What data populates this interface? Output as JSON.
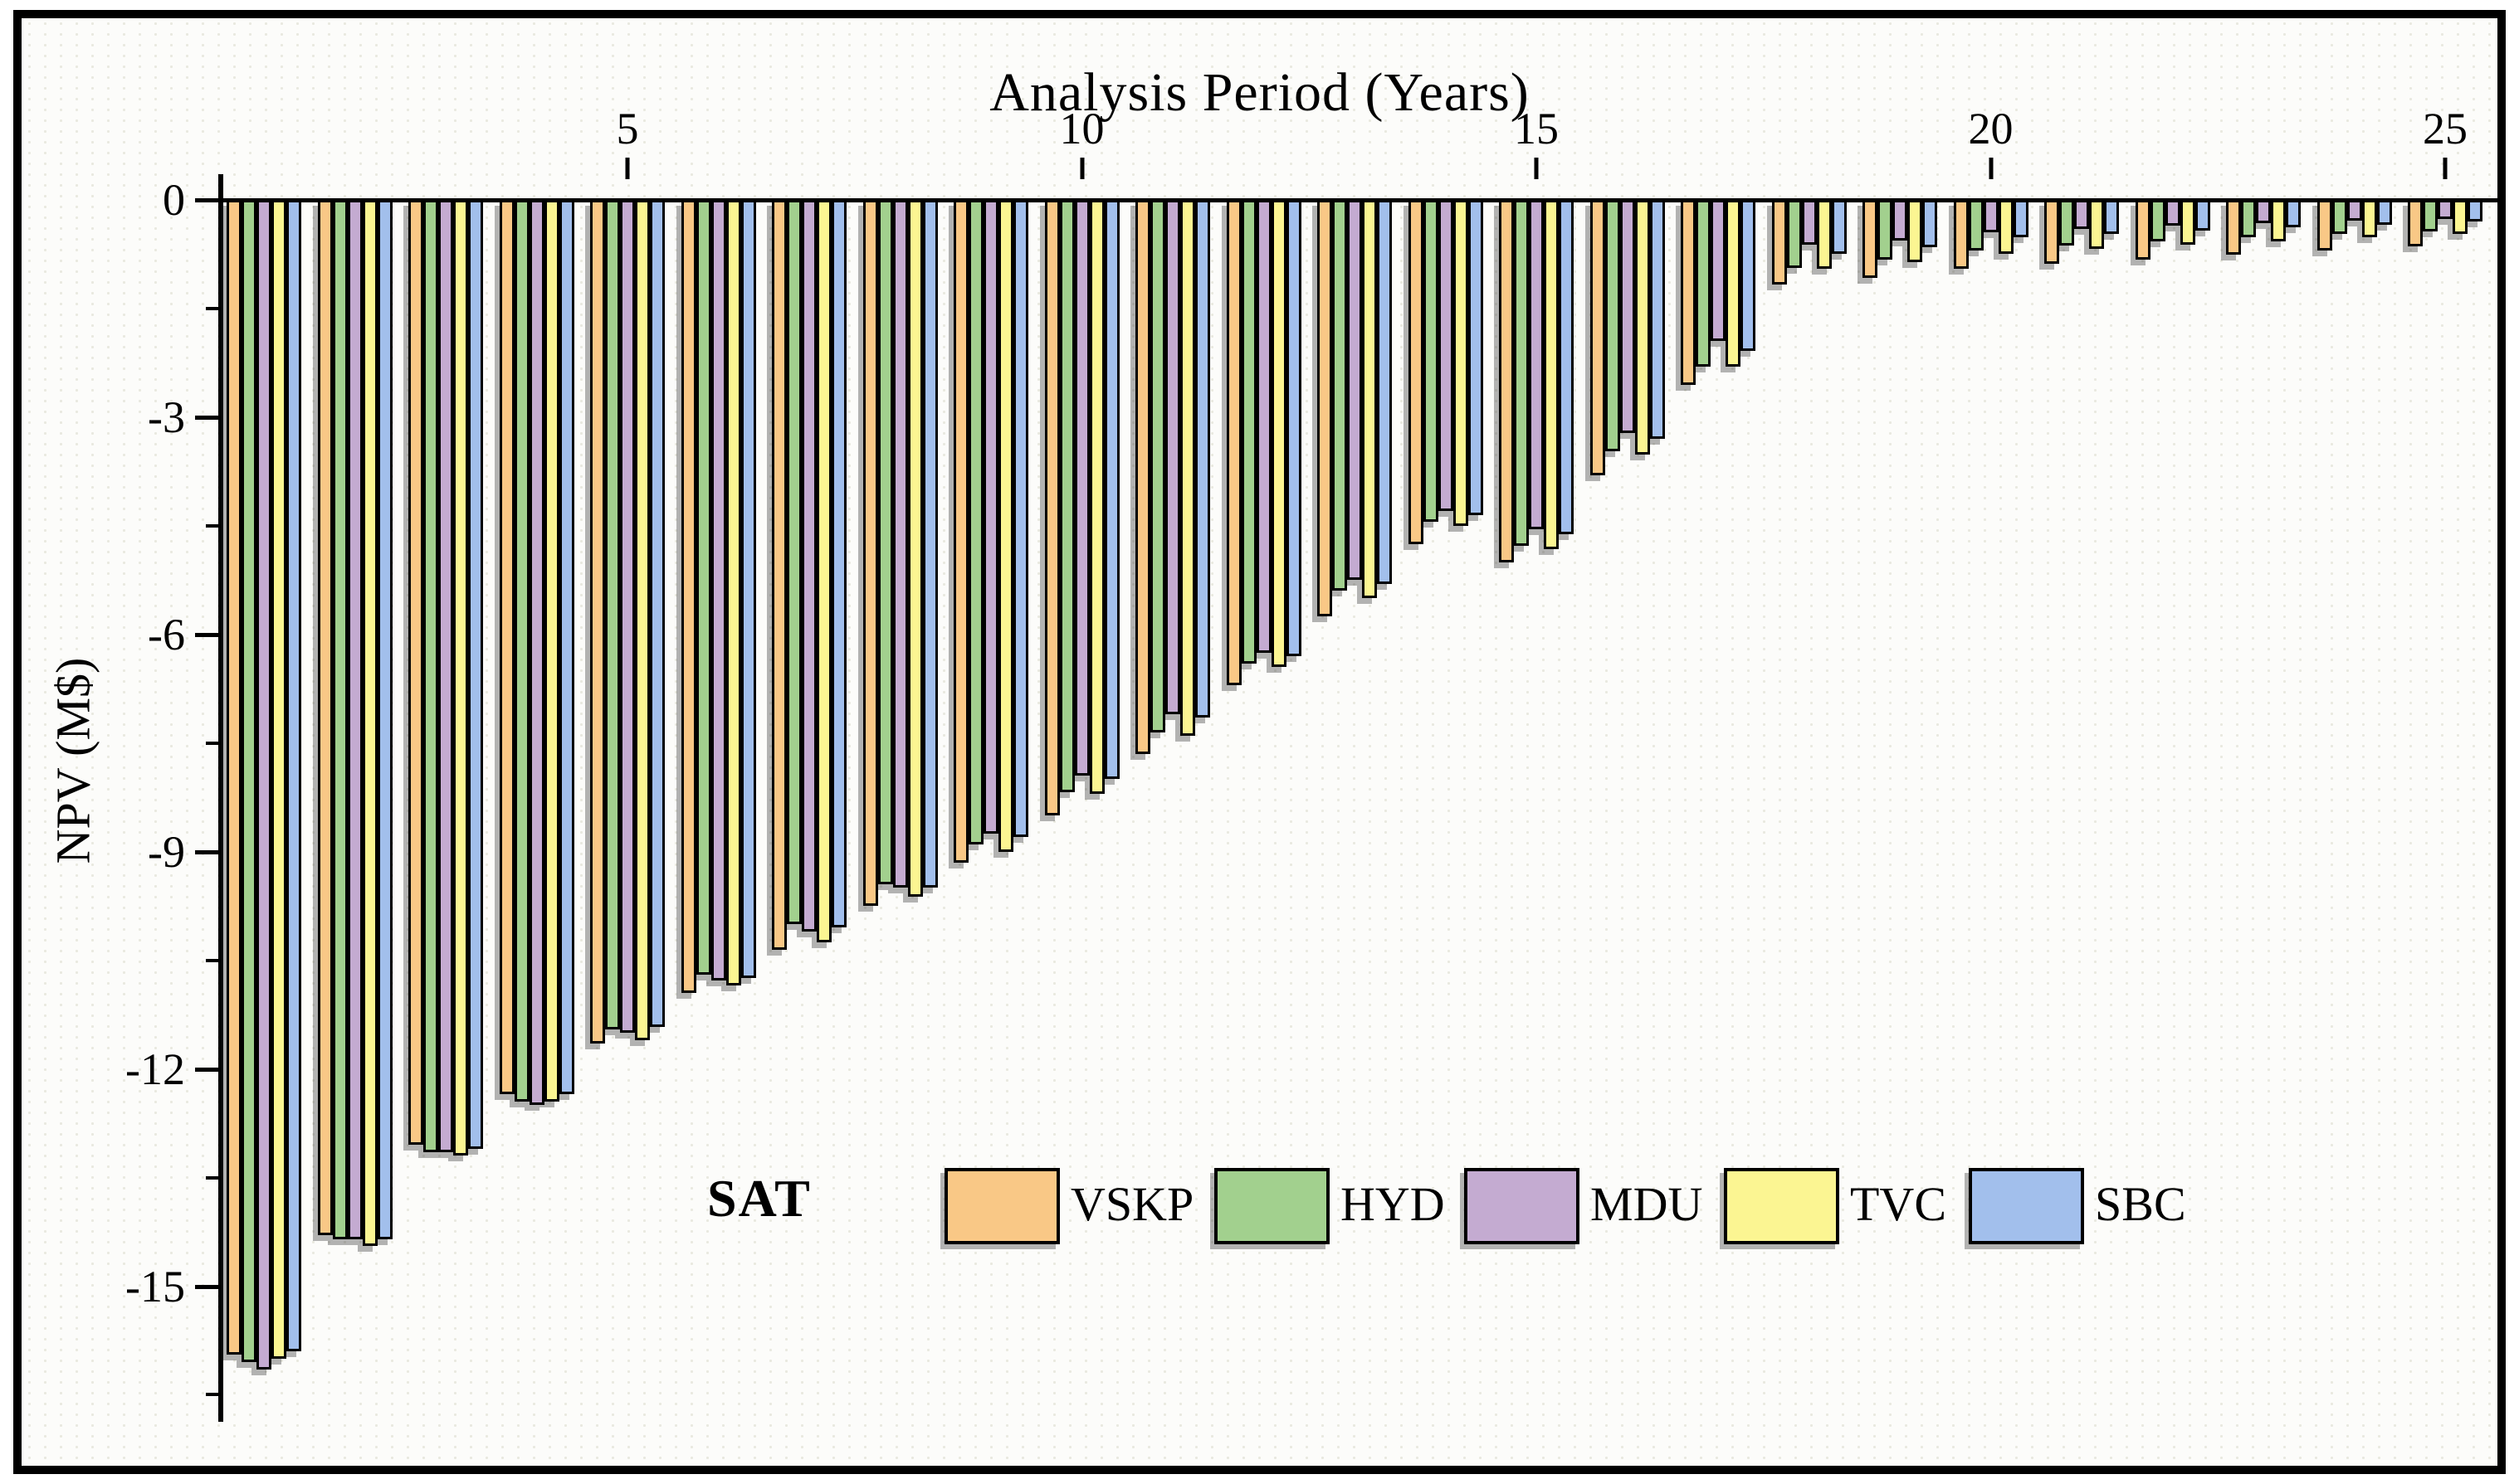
{
  "chart_data": {
    "type": "bar",
    "orientation": "vertical-negative",
    "title": "Analysis Period (Years)",
    "ylabel": "NPV (M$)",
    "legend_title": "SAT",
    "legend_position": "bottom-center",
    "grid": false,
    "background": "#fcfcfa",
    "axis_color": "#000000",
    "x_major_ticks": [
      5,
      10,
      15,
      20,
      25
    ],
    "y_major_ticks": [
      0,
      -3,
      -6,
      -9,
      -12,
      -15
    ],
    "y_minor_ticks": [
      -1.5,
      -4.5,
      -7.5,
      -10.5,
      -13.5,
      -16.5
    ],
    "ylim": [
      -16.9,
      0
    ],
    "categories": [
      1,
      2,
      3,
      4,
      5,
      6,
      7,
      8,
      9,
      10,
      11,
      12,
      13,
      14,
      15,
      16,
      17,
      18,
      19,
      20,
      21,
      22,
      23,
      24,
      25
    ],
    "series": [
      {
        "name": "VSKP",
        "color": "#f9c886",
        "values": [
          -15.95,
          -14.3,
          -13.05,
          -12.35,
          -11.65,
          -10.95,
          -10.35,
          -9.75,
          -9.15,
          -8.5,
          -7.65,
          -6.7,
          -5.75,
          -4.75,
          -5.0,
          -3.8,
          -2.55,
          -1.17,
          -1.08,
          -0.95,
          -0.88,
          -0.82,
          -0.76,
          -0.7,
          -0.64
        ]
      },
      {
        "name": "HYD",
        "color": "#a2d08e",
        "values": [
          -16.05,
          -14.35,
          -13.15,
          -12.45,
          -11.45,
          -10.7,
          -10.0,
          -9.45,
          -8.9,
          -8.18,
          -7.35,
          -6.4,
          -5.4,
          -4.45,
          -4.78,
          -3.47,
          -2.3,
          -0.94,
          -0.83,
          -0.7,
          -0.63,
          -0.57,
          -0.52,
          -0.47,
          -0.43
        ]
      },
      {
        "name": "MDU",
        "color": "#c4abd1",
        "values": [
          -16.15,
          -14.35,
          -13.15,
          -12.5,
          -11.5,
          -10.78,
          -10.1,
          -9.5,
          -8.75,
          -7.95,
          -7.1,
          -6.25,
          -5.25,
          -4.3,
          -4.55,
          -3.22,
          -1.95,
          -0.62,
          -0.56,
          -0.45,
          -0.4,
          -0.36,
          -0.32,
          -0.29,
          -0.26
        ]
      },
      {
        "name": "TVC",
        "color": "#fbf592",
        "values": [
          -16.0,
          -14.45,
          -13.2,
          -12.45,
          -11.6,
          -10.85,
          -10.25,
          -9.62,
          -9.0,
          -8.2,
          -7.4,
          -6.45,
          -5.5,
          -4.5,
          -4.82,
          -3.52,
          -2.3,
          -0.95,
          -0.86,
          -0.75,
          -0.68,
          -0.62,
          -0.57,
          -0.52,
          -0.47
        ]
      },
      {
        "name": "SBC",
        "color": "#a2bfec",
        "values": [
          -15.9,
          -14.35,
          -13.1,
          -12.35,
          -11.42,
          -10.75,
          -10.05,
          -9.5,
          -8.8,
          -8.0,
          -7.15,
          -6.3,
          -5.3,
          -4.35,
          -4.62,
          -3.3,
          -2.08,
          -0.74,
          -0.65,
          -0.52,
          -0.47,
          -0.42,
          -0.38,
          -0.34,
          -0.3
        ]
      }
    ]
  }
}
